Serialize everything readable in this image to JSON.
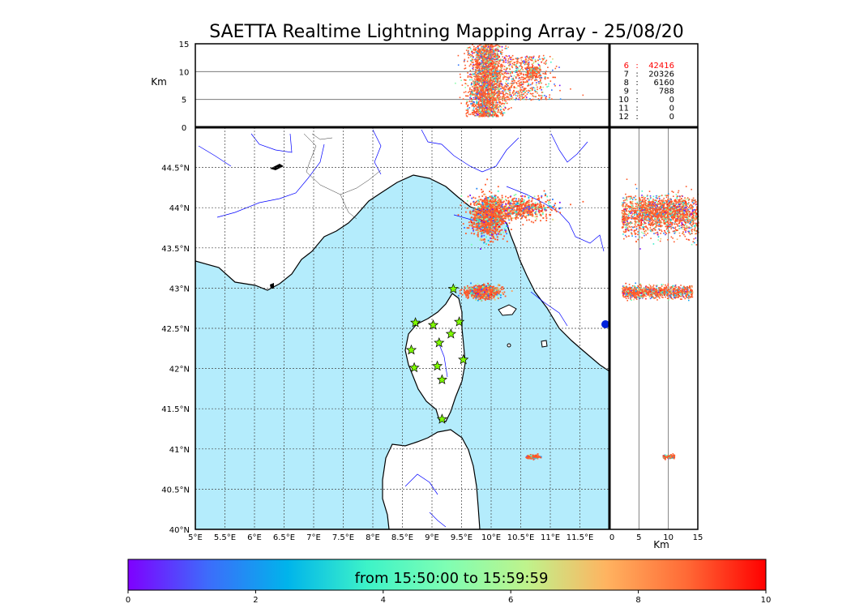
{
  "title": "SAETTA Realtime Lightning Mapping Array - 25/08/20",
  "altitude_panel": {
    "unit_label": "Km",
    "ticks": [
      "15",
      "10",
      "5",
      "0"
    ],
    "tick_values": [
      15,
      10,
      5,
      0
    ]
  },
  "counts_table": {
    "rows": [
      {
        "stations": "6",
        "sep": ":",
        "count": "42416",
        "highlight": true
      },
      {
        "stations": "7",
        "sep": ":",
        "count": "20326",
        "highlight": false
      },
      {
        "stations": "8",
        "sep": ":",
        "count": "6160",
        "highlight": false
      },
      {
        "stations": "9",
        "sep": ":",
        "count": "788",
        "highlight": false
      },
      {
        "stations": "10",
        "sep": ":",
        "count": "0",
        "highlight": false
      },
      {
        "stations": "11",
        "sep": ":",
        "count": "0",
        "highlight": false
      },
      {
        "stations": "12",
        "sep": ":",
        "count": "0",
        "highlight": false
      }
    ],
    "highlight_color": "#ff0000"
  },
  "map": {
    "lon_ticks": [
      "5°E",
      "5.5°E",
      "6°E",
      "6.5°E",
      "7°E",
      "7.5°E",
      "8°E",
      "8.5°E",
      "9°E",
      "9.5°E",
      "10°E",
      "10.5°E",
      "11°E",
      "11.5°E"
    ],
    "lon_values": [
      5,
      5.5,
      6,
      6.5,
      7,
      7.5,
      8,
      8.5,
      9,
      9.5,
      10,
      10.5,
      11,
      11.5
    ],
    "lat_ticks": [
      "44.5°N",
      "44°N",
      "43.5°N",
      "43°N",
      "42.5°N",
      "42°N",
      "41.5°N",
      "41°N",
      "40.5°N",
      "40°N"
    ],
    "lat_values": [
      44.5,
      44,
      43.5,
      43,
      42.5,
      42,
      41.5,
      41,
      40.5,
      40
    ],
    "lon_range": [
      5,
      12
    ],
    "lat_range": [
      40,
      45
    ],
    "grid": true,
    "sea_color": "#b4ecfc",
    "river_color": "#0000ff",
    "station_color": "#80ff00",
    "stations": [
      [
        9.36,
        42.99
      ],
      [
        8.72,
        42.57
      ],
      [
        9.02,
        42.54
      ],
      [
        9.46,
        42.58
      ],
      [
        9.32,
        42.43
      ],
      [
        9.12,
        42.32
      ],
      [
        8.65,
        42.23
      ],
      [
        9.53,
        42.11
      ],
      [
        8.7,
        42.01
      ],
      [
        9.09,
        42.03
      ],
      [
        9.17,
        41.86
      ],
      [
        9.17,
        41.37
      ]
    ]
  },
  "side_panel": {
    "ticks": [
      "0",
      "5",
      "10",
      "15"
    ],
    "tick_values": [
      0,
      5,
      10,
      15
    ],
    "unit_label": "Km"
  },
  "colorbar": {
    "caption": "from 15:50:00 to 15:59:59",
    "ticks": [
      "0",
      "2",
      "4",
      "6",
      "8",
      "10"
    ],
    "tick_values": [
      0,
      2,
      4,
      6,
      8,
      10
    ],
    "gradient": [
      "#7f00ff",
      "#3d6cfb",
      "#00b4eb",
      "#3df3c8",
      "#7ffeb3",
      "#bff38c",
      "#ffb360",
      "#ff6a36",
      "#ff0000"
    ]
  },
  "chart_data": {
    "type": "scatter",
    "title": "SAETTA Realtime Lightning Mapping Array - 25/08/20",
    "xlabel": "",
    "ylabel": "",
    "xlim": [
      5,
      12
    ],
    "ylim": [
      40,
      45
    ],
    "series": [
      {
        "name": "",
        "center": [
          9.95,
          43.9
        ],
        "spread": [
          0.25,
          0.22
        ],
        "altitude_km": [
          2,
          15
        ],
        "relative_density": 0.45
      },
      {
        "name": "",
        "center": [
          10.5,
          44.0
        ],
        "spread": [
          0.5,
          0.12
        ],
        "altitude_km": [
          5,
          13
        ],
        "relative_density": 0.2
      },
      {
        "name": "",
        "center": [
          9.85,
          42.96
        ],
        "spread": [
          0.25,
          0.07
        ],
        "altitude_km": [
          2,
          14
        ],
        "relative_density": 0.3
      },
      {
        "name": "",
        "center": [
          10.7,
          40.91
        ],
        "spread": [
          0.1,
          0.02
        ],
        "altitude_km": [
          9,
          11
        ],
        "relative_density": 0.05
      }
    ]
  }
}
